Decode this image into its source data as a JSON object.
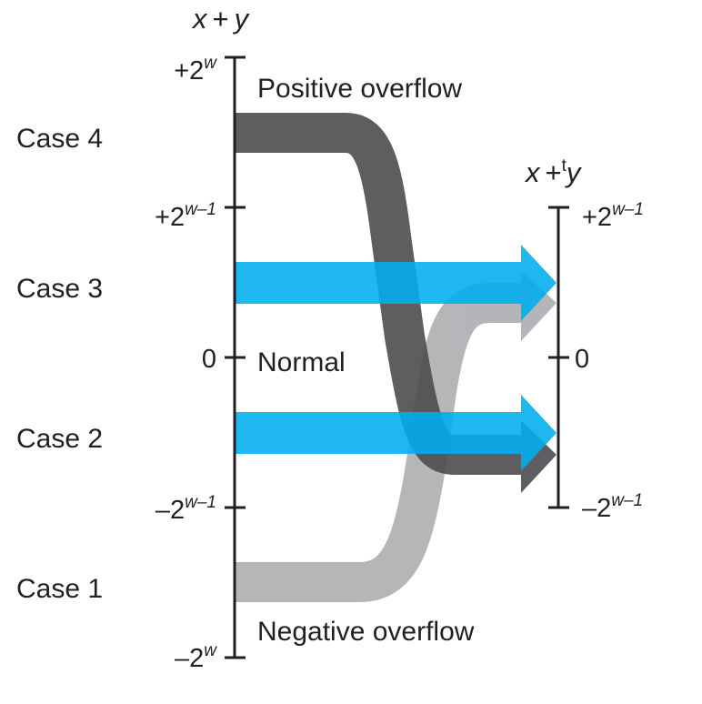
{
  "axes": {
    "left": {
      "title_x": "x",
      "title_op": "+",
      "title_y": "y",
      "ticks": [
        {
          "base": "+2",
          "exp": "w"
        },
        {
          "base": "+2",
          "exp": "w–1"
        },
        {
          "base": "0",
          "exp": ""
        },
        {
          "base": "–2",
          "exp": "w–1"
        },
        {
          "base": "–2",
          "exp": "w"
        }
      ]
    },
    "right": {
      "title_x": "x",
      "title_op": "+",
      "title_sup": "t",
      "title_y": "y",
      "ticks": [
        {
          "base": "+2",
          "exp": "w–1"
        },
        {
          "base": "0",
          "exp": ""
        },
        {
          "base": "–2",
          "exp": "w–1"
        }
      ]
    }
  },
  "cases": [
    {
      "label": "Case 4",
      "band": "dark-gray"
    },
    {
      "label": "Case 3",
      "band": "blue"
    },
    {
      "label": "Case 2",
      "band": "blue"
    },
    {
      "label": "Case 1",
      "band": "light-gray"
    }
  ],
  "regions": {
    "positive": "Positive overflow",
    "normal": "Normal",
    "negative": "Negative overflow"
  },
  "colors": {
    "axis": "#231f20",
    "blue": "#00aeef",
    "dark_gray": "#4d4d4f",
    "light_gray": "#a7a9ac"
  }
}
